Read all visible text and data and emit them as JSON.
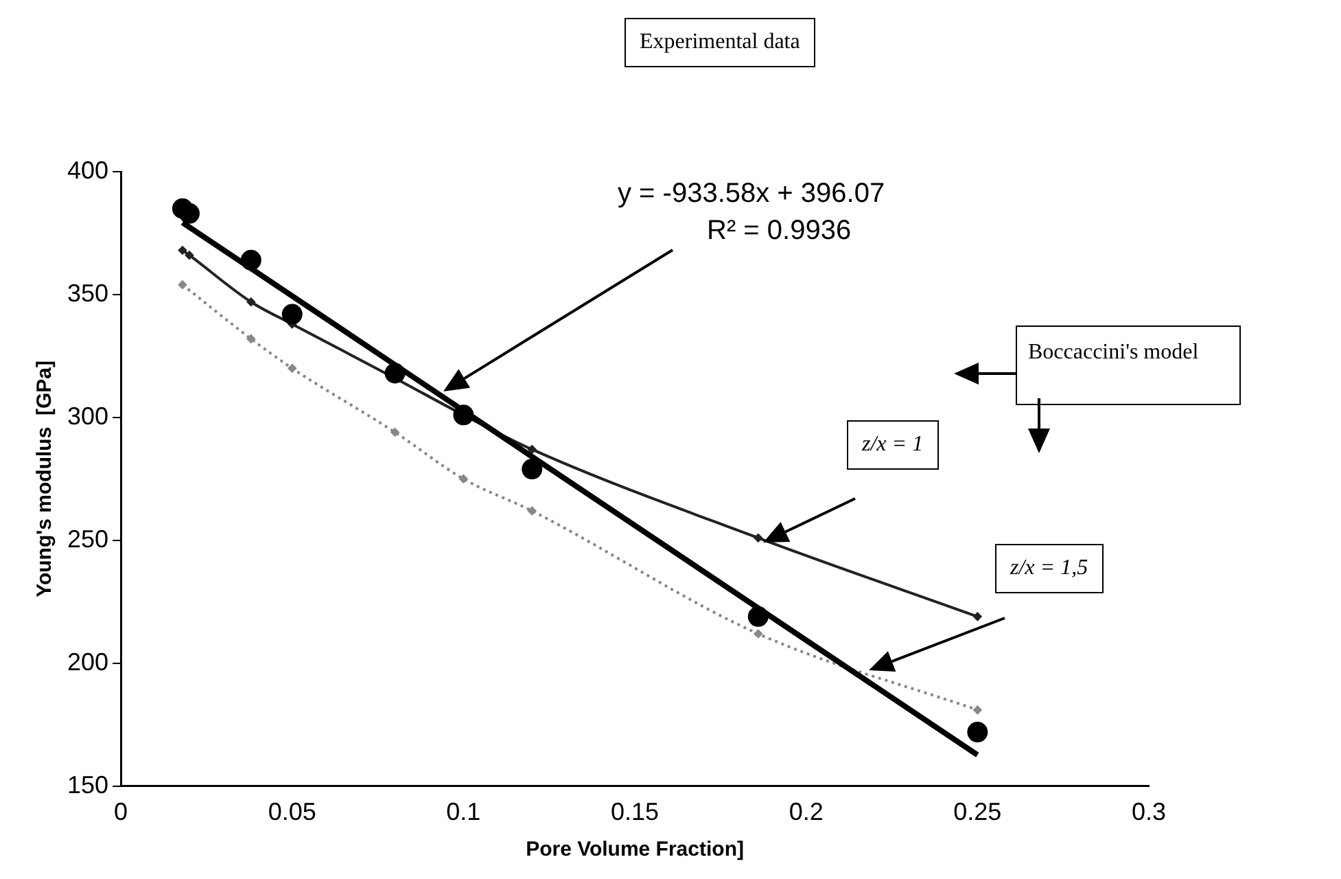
{
  "chart_data": {
    "type": "scatter",
    "xlabel": "Pore Volume Fraction]",
    "ylabel": "Young's modulus  [GPa]",
    "xlim": [
      0,
      0.3
    ],
    "xticks": [
      0,
      0.05,
      0.1,
      0.15,
      0.2,
      0.25,
      0.3
    ],
    "ylim": [
      150,
      400
    ],
    "yticks": [
      150,
      200,
      250,
      300,
      350,
      400
    ],
    "grid": false,
    "legend": false,
    "annotations": [
      "Experimental data",
      "y = -933.58x + 396.07",
      "R² = 0.9936",
      "Boccaccini's model",
      "z/x = 1",
      "z/x = 1,5"
    ],
    "series": [
      {
        "color": "#000000",
        "marker": "circle",
        "x": [
          0.018,
          0.02,
          0.038,
          0.05,
          0.08,
          0.1,
          0.12,
          0.186,
          0.25
        ],
        "values": [
          385,
          383,
          364,
          342,
          318,
          301,
          279,
          219,
          172
        ]
      },
      {
        "type": "line",
        "color": "#000000",
        "marker": "none",
        "line_style": "solid",
        "x": [
          0.018,
          0.25
        ],
        "values": [
          379.3,
          162.7
        ]
      },
      {
        "type": "line",
        "color": "#222222",
        "marker": "diamond",
        "line_style": "solid",
        "x": [
          0.018,
          0.02,
          0.038,
          0.05,
          0.08,
          0.1,
          0.12,
          0.186,
          0.25
        ],
        "values": [
          368,
          366,
          347,
          338,
          316,
          301,
          287,
          251,
          219
        ]
      },
      {
        "type": "line",
        "color": "#888888",
        "marker": "diamond",
        "line_style": "dotted",
        "x": [
          0.018,
          0.038,
          0.05,
          0.08,
          0.1,
          0.12,
          0.186,
          0.25
        ],
        "values": [
          354,
          332,
          320,
          294,
          275,
          262,
          212,
          181
        ]
      }
    ]
  }
}
